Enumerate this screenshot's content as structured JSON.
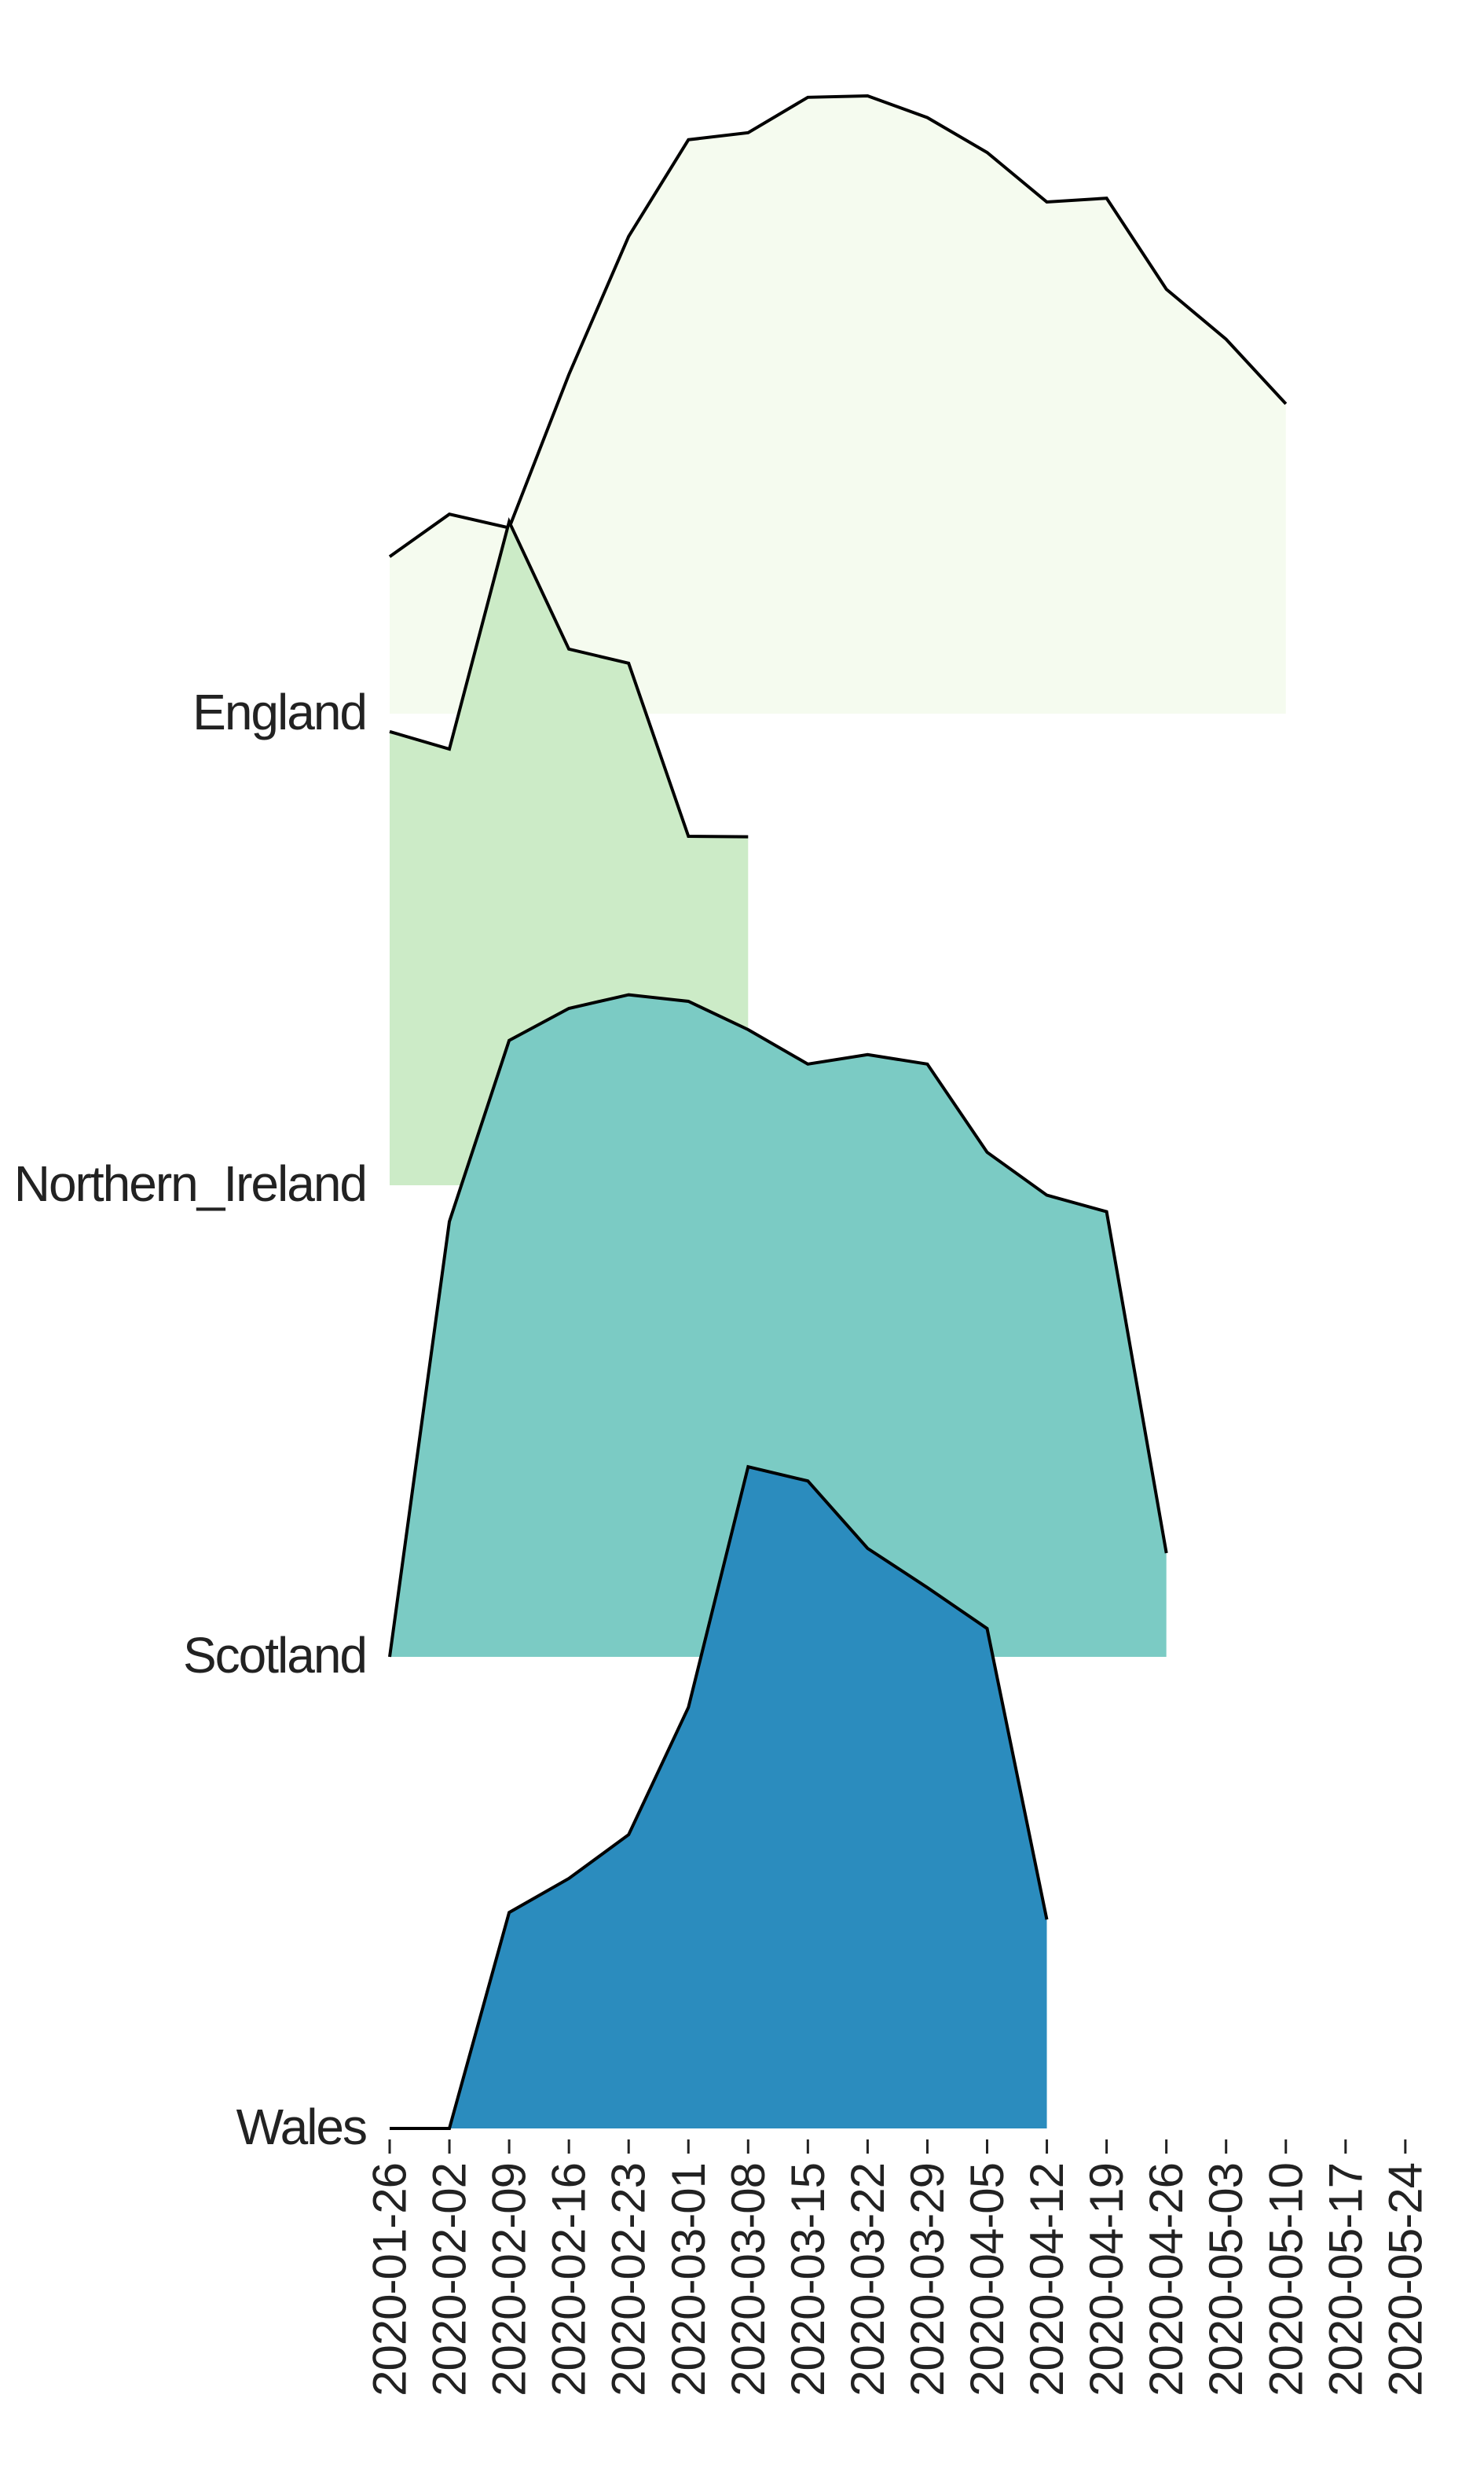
{
  "chart_data": {
    "type": "area",
    "subtype": "ridgeline",
    "title": "",
    "xlabel": "",
    "ylabel": "",
    "x_ticks": [
      "2020-01-26",
      "2020-02-02",
      "2020-02-09",
      "2020-02-16",
      "2020-02-23",
      "2020-03-01",
      "2020-03-08",
      "2020-03-15",
      "2020-03-22",
      "2020-03-29",
      "2020-04-05",
      "2020-04-12",
      "2020-04-19",
      "2020-04-26",
      "2020-05-03",
      "2020-05-10",
      "2020-05-17",
      "2020-05-24"
    ],
    "value_scale": "relative ridge height, 0 to 1 (no y-axis shown)",
    "grid": false,
    "legend": "none",
    "series": [
      {
        "name": "England",
        "color": "#f5fbef",
        "x": [
          "2020-01-26",
          "2020-02-02",
          "2020-02-09",
          "2020-02-16",
          "2020-02-23",
          "2020-03-01",
          "2020-03-08",
          "2020-03-15",
          "2020-03-22",
          "2020-03-29",
          "2020-04-05",
          "2020-04-12",
          "2020-04-19",
          "2020-04-26",
          "2020-05-03",
          "2020-05-10"
        ],
        "values": [
          0.333,
          0.423,
          0.394,
          0.719,
          1.012,
          1.217,
          1.232,
          1.307,
          1.31,
          1.264,
          1.19,
          1.085,
          1.093,
          0.9,
          0.794,
          0.657
        ]
      },
      {
        "name": "Northern_Ireland",
        "color": "#ccebc7",
        "x": [
          "2020-01-26",
          "2020-02-02",
          "2020-02-09",
          "2020-02-16",
          "2020-02-23",
          "2020-03-01",
          "2020-03-08"
        ],
        "values": [
          0.962,
          0.925,
          1.407,
          1.137,
          1.107,
          0.74,
          0.739
        ]
      },
      {
        "name": "Scotland",
        "color": "#7bcbc4",
        "x": [
          "2020-01-26",
          "2020-02-02",
          "2020-02-09",
          "2020-02-16",
          "2020-02-23",
          "2020-03-01",
          "2020-03-08",
          "2020-03-15",
          "2020-03-22",
          "2020-03-29",
          "2020-04-05",
          "2020-04-12",
          "2020-04-19",
          "2020-04-26"
        ],
        "values": [
          0.0,
          0.923,
          1.307,
          1.375,
          1.404,
          1.39,
          1.33,
          1.257,
          1.277,
          1.257,
          1.07,
          0.979,
          0.944,
          0.22
        ]
      },
      {
        "name": "Wales",
        "color": "#2b8cbe",
        "x": [
          "2020-01-26",
          "2020-02-02",
          "2020-02-09",
          "2020-02-16",
          "2020-02-23",
          "2020-03-01",
          "2020-03-08",
          "2020-03-15",
          "2020-03-22",
          "2020-03-29",
          "2020-04-05",
          "2020-04-12"
        ],
        "values": [
          0.0,
          0.0,
          0.458,
          0.53,
          0.623,
          0.893,
          1.403,
          1.373,
          1.23,
          1.147,
          1.06,
          0.443
        ]
      }
    ]
  }
}
